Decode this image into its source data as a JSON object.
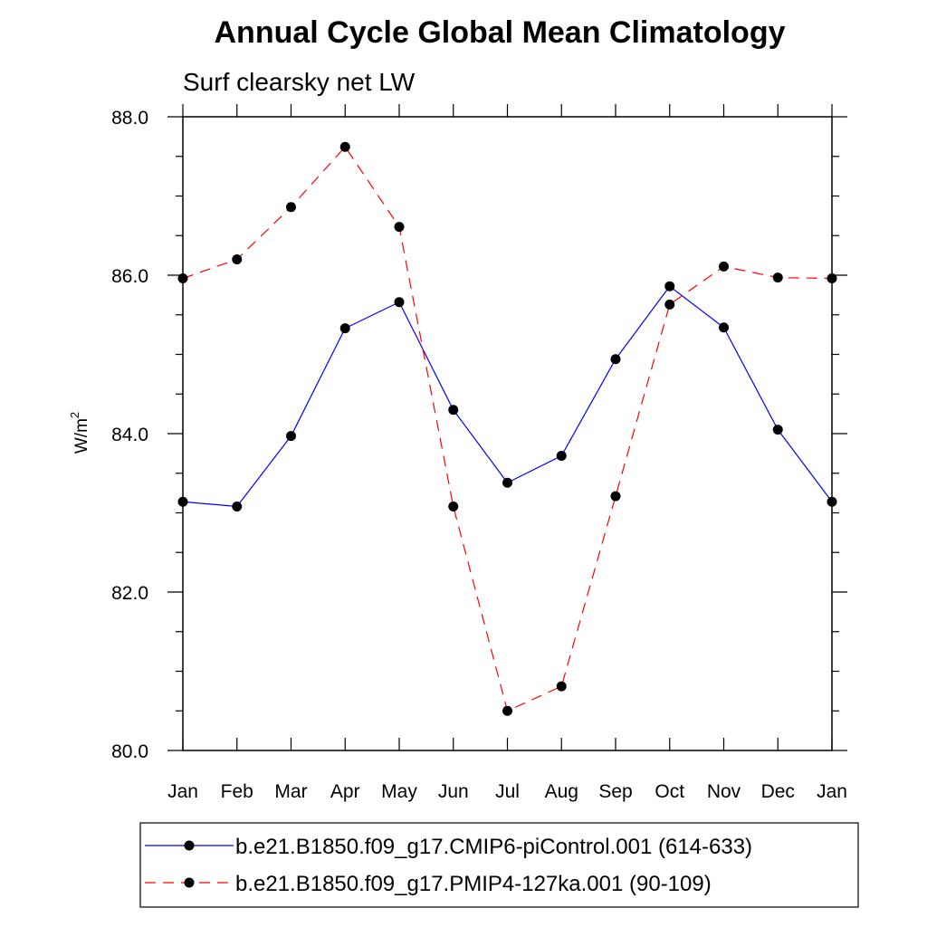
{
  "chart_data": {
    "type": "line",
    "title": "Annual Cycle Global Mean Climatology",
    "subtitle": "Surf clearsky net LW",
    "ylabel": "W/m",
    "ylabel_sup": "2",
    "ylim": [
      80.0,
      88.0
    ],
    "yticks": [
      "80.0",
      "82.0",
      "84.0",
      "86.0",
      "88.0"
    ],
    "categories": [
      "Jan",
      "Feb",
      "Mar",
      "Apr",
      "May",
      "Jun",
      "Jul",
      "Aug",
      "Sep",
      "Oct",
      "Nov",
      "Dec",
      "Jan"
    ],
    "series": [
      {
        "name": "b.e21.B1850.f09_g17.CMIP6-piControl.001 (614-633)",
        "color": "#0000ff",
        "dash": "solid",
        "values": [
          83.14,
          83.08,
          83.97,
          85.33,
          85.66,
          84.3,
          83.38,
          83.72,
          84.94,
          85.86,
          85.34,
          84.05,
          83.14
        ]
      },
      {
        "name": "b.e21.B1850.f09_g17.PMIP4-127ka.001 (90-109)",
        "color": "#ff0000",
        "dash": "dashed",
        "values": [
          85.96,
          86.2,
          86.86,
          87.62,
          86.61,
          83.08,
          80.5,
          80.81,
          83.21,
          85.63,
          86.11,
          85.97,
          85.96
        ]
      }
    ],
    "legend_position": "bottom"
  }
}
